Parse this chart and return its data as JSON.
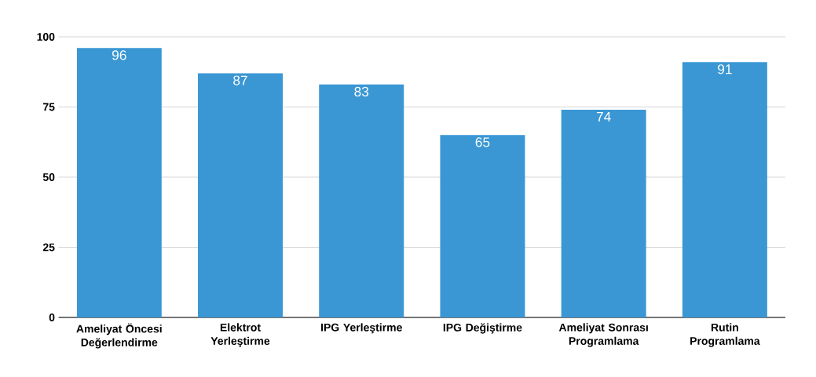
{
  "chart_data": {
    "type": "bar",
    "categories": [
      "Ameliyat Öncesi Değerlendirme",
      "Elektrot Yerleştirme",
      "IPG Yerleştirme",
      "IPG Değiştirme",
      "Ameliyat Sonrası Programlama",
      "Rutin Programlama"
    ],
    "values": [
      96,
      87,
      83,
      65,
      74,
      91
    ],
    "color": "#3a97d4",
    "ylim": [
      0,
      100
    ],
    "yticks": [
      0,
      25,
      50,
      75,
      100
    ],
    "grid": "y",
    "data_labels": true
  }
}
